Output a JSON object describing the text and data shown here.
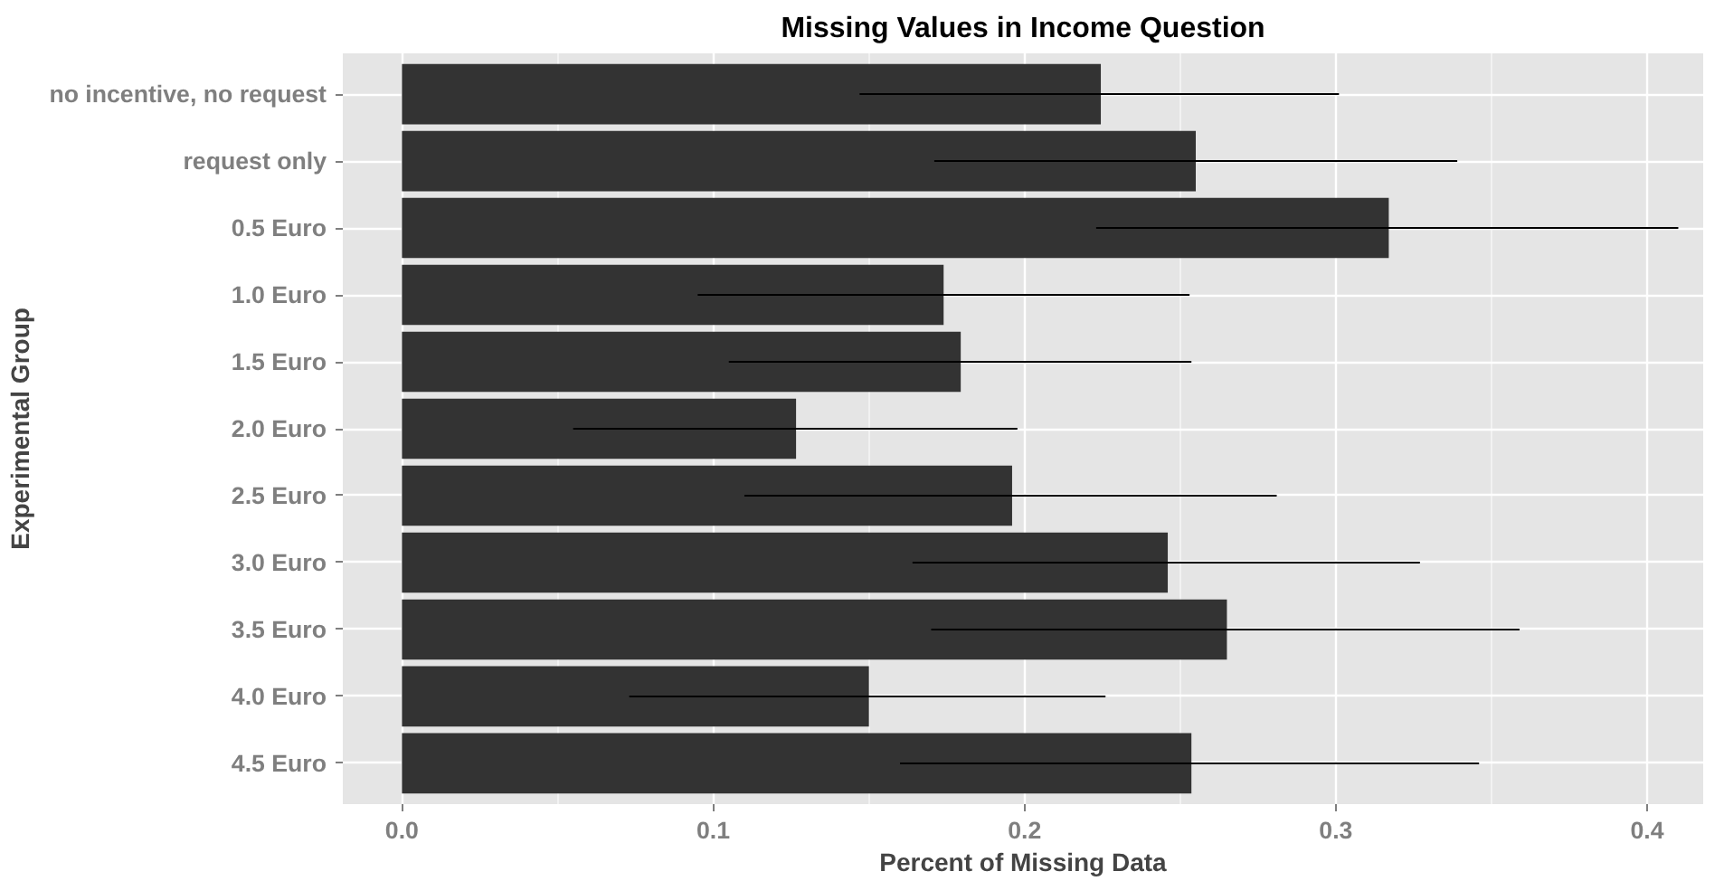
{
  "chart_data": {
    "type": "bar",
    "orientation": "horizontal",
    "title": "Missing Values in Income Question",
    "xlabel": "Percent of Missing Data",
    "ylabel": "Experimental Group",
    "categories": [
      "no incentive, no request",
      "request only",
      "0.5 Euro",
      "1.0 Euro",
      "1.5 Euro",
      "2.0 Euro",
      "2.5 Euro",
      "3.0 Euro",
      "3.5 Euro",
      "4.0 Euro",
      "4.5 Euro"
    ],
    "values": [
      0.2245,
      0.255,
      0.317,
      0.174,
      0.1795,
      0.1266,
      0.196,
      0.246,
      0.265,
      0.15,
      0.2536
    ],
    "errors": [
      [
        0.147,
        0.301
      ],
      [
        0.171,
        0.339
      ],
      [
        0.223,
        0.41
      ],
      [
        0.095,
        0.253
      ],
      [
        0.105,
        0.2536
      ],
      [
        0.055,
        0.1977
      ],
      [
        0.11,
        0.281
      ],
      [
        0.164,
        0.327
      ],
      [
        0.17,
        0.359
      ],
      [
        0.073,
        0.226
      ],
      [
        0.16,
        0.346
      ]
    ],
    "color": "#333333",
    "xlim": [
      -0.019,
      0.418
    ],
    "xticks": [
      {
        "value": 0,
        "label": "0.0"
      },
      0.1,
      0.2,
      0.3,
      0.4
    ],
    "grid": true
  }
}
